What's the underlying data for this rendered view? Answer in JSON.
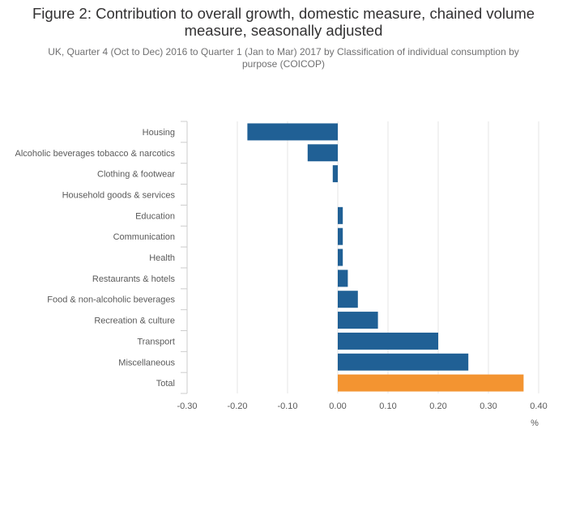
{
  "title": "Figure 2: Contribution to overall growth, domestic measure, chained volume measure, seasonally adjusted",
  "subtitle": "UK, Quarter 4 (Oct to Dec) 2016 to Quarter 1 (Jan to Mar) 2017 by Classification of individual consumption by purpose (COICOP)",
  "colors": {
    "bar": "#206095",
    "highlight": "#f39431",
    "grid": "#e6e6e6",
    "axis": "#cccccc"
  },
  "chart_data": {
    "type": "bar",
    "orientation": "horizontal",
    "categories": [
      "Housing",
      "Alcoholic beverages tobacco & narcotics",
      "Clothing & footwear",
      "Household goods & services",
      "Education",
      "Communication",
      "Health",
      "Restaurants & hotels",
      "Food & non-alcoholic beverages",
      "Recreation & culture",
      "Transport",
      "Miscellaneous",
      "Total"
    ],
    "values": [
      -0.18,
      -0.06,
      -0.01,
      0.0,
      0.01,
      0.01,
      0.01,
      0.02,
      0.04,
      0.08,
      0.2,
      0.26,
      0.37
    ],
    "highlight_category": "Total",
    "xlabel": "%",
    "ylabel": "",
    "xlim": [
      -0.3,
      0.4
    ],
    "xticks": [
      -0.3,
      -0.2,
      -0.1,
      0.0,
      0.1,
      0.2,
      0.3,
      0.4
    ],
    "xtick_labels": [
      "-0.30",
      "-0.20",
      "-0.10",
      "0.00",
      "0.10",
      "0.20",
      "0.30",
      "0.40"
    ],
    "grid": true,
    "legend": "none"
  }
}
